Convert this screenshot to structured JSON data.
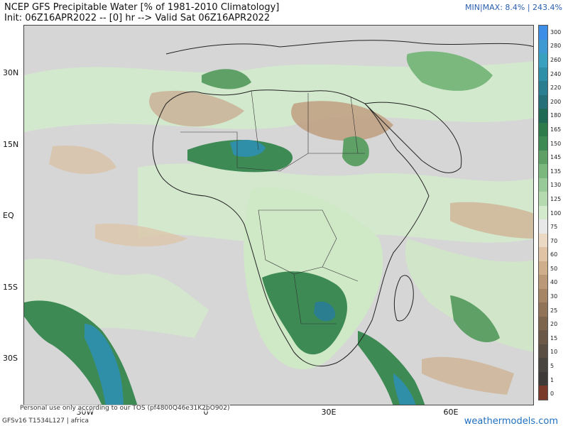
{
  "header": {
    "title": "NCEP GFS Precipitable Water [% of 1981-2010 Climatology]",
    "subtitle": "Init: 06Z16APR2022 -- [0] hr --> Valid Sat 06Z16APR2022",
    "minmax": "MIN|MAX: 8.4% | 243.4%"
  },
  "axes": {
    "lat_labels": [
      "30N",
      "15N",
      "EQ",
      "15S",
      "30S"
    ],
    "lon_labels": [
      "30W",
      "0",
      "30E",
      "60E"
    ]
  },
  "colorbar": {
    "labels": [
      "300",
      "280",
      "260",
      "240",
      "220",
      "200",
      "180",
      "165",
      "150",
      "145",
      "135",
      "130",
      "125",
      "100",
      "75",
      "70",
      "60",
      "50",
      "40",
      "30",
      "25",
      "20",
      "15",
      "10",
      "5",
      "1",
      "0"
    ],
    "colors": [
      "#3c8ee6",
      "#3f99d2",
      "#3aa0c0",
      "#2f8fa8",
      "#2a7e90",
      "#256f78",
      "#1f6a55",
      "#2d7a4a",
      "#3d8a55",
      "#5ea066",
      "#7ab87e",
      "#98c998",
      "#b6dab0",
      "#d3ebcc",
      "#e8e8e8",
      "#ecd9c4",
      "#dfc3a4",
      "#cfae8c",
      "#bb9877",
      "#a68466",
      "#917358",
      "#7d644d",
      "#6b5846",
      "#5a4e42",
      "#4a443e",
      "#3e3a37",
      "#7a3a2a"
    ]
  },
  "footer": {
    "note": "Personal use only according to our TOS (pf4800Q46e31K2bO902)",
    "model": "GFSv16 T1534L127 | africa",
    "brand": "weathermodels.com"
  }
}
